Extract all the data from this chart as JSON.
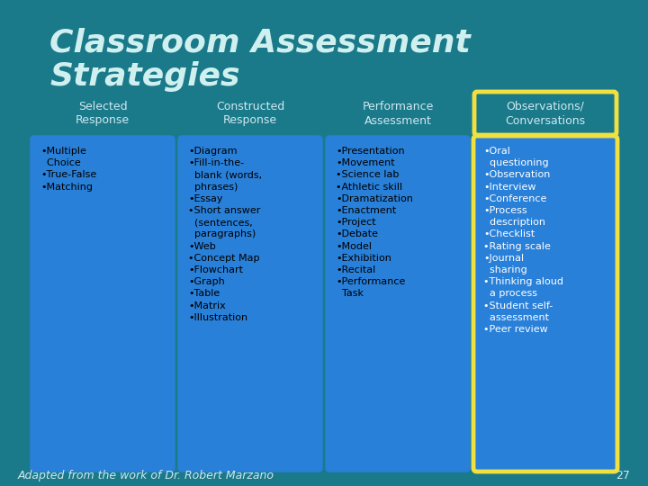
{
  "title_line1": "Classroom Assessment",
  "title_line2": "Strategies",
  "background_color": "#1a7a8a",
  "title_color": "#d0f0f0",
  "title_fontsize": 26,
  "columns": [
    {
      "header": "Selected\nResponse",
      "items": "•Multiple\n  Choice\n•True-False\n•Matching",
      "box_color": "#2980d9",
      "box_edgecolor": "#2980d9",
      "header_color": "#d0e8f0",
      "text_color": "#000000",
      "highlighted": false
    },
    {
      "header": "Constructed\nResponse",
      "items": "•Diagram\n•Fill-in-the-\n  blank (words,\n  phrases)\n•Essay\n•Short answer\n  (sentences,\n  paragraphs)\n•Web\n•Concept Map\n•Flowchart\n•Graph\n•Table\n•Matrix\n•Illustration",
      "box_color": "#2980d9",
      "box_edgecolor": "#2980d9",
      "header_color": "#d0e8f0",
      "text_color": "#000000",
      "highlighted": false
    },
    {
      "header": "Performance\nAssessment",
      "items": "•Presentation\n•Movement\n•Science lab\n•Athletic skill\n•Dramatization\n•Enactment\n•Project\n•Debate\n•Model\n•Exhibition\n•Recital\n•Performance\n  Task",
      "box_color": "#2980d9",
      "box_edgecolor": "#2980d9",
      "header_color": "#d0e8f0",
      "text_color": "#000000",
      "highlighted": false
    },
    {
      "header": "Observations/\nConversations",
      "items": "•Oral\n  questioning\n•Observation\n•Interview\n•Conference\n•Process\n  description\n•Checklist\n•Rating scale\n•Journal\n  sharing\n•Thinking aloud\n  a process\n•Student self-\n  assessment\n•Peer review",
      "box_color": "#2980d9",
      "box_edgecolor": "#f0e040",
      "header_color": "#d0e8f0",
      "text_color": "#ffffff",
      "highlighted": true
    }
  ],
  "footer": "Adapted from the work of Dr. Robert Marzano",
  "footer_color": "#d0e8f0",
  "footer_fontsize": 9,
  "page_number": "27",
  "page_number_color": "#d0e8f0"
}
